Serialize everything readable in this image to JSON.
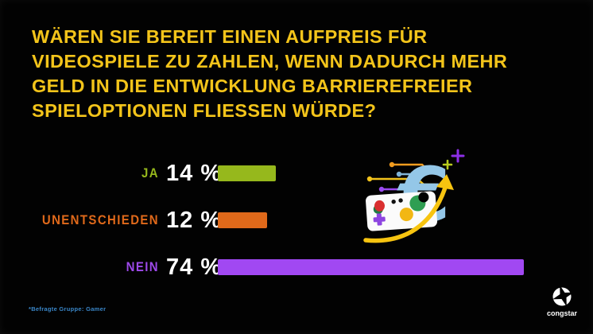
{
  "slide": {
    "title_lines": [
      "WÄREN SIE BEREIT EINEN AUFPREIS FÜR",
      "VIDEOSPIELE ZU ZAHLEN, WENN DADURCH MEHR",
      "GELD IN DIE ENTWICKLUNG BARRIEREFREIER",
      "SPIELOPTIONEN FLIESSEN WÜRDE?"
    ],
    "footnote": "*Befragte Gruppe: Gamer",
    "brand": "congstar"
  },
  "chart_data": {
    "type": "bar",
    "orientation": "horizontal",
    "title": "Wären Sie bereit einen Aufpreis für Videospiele zu zahlen, wenn dadurch mehr Geld in die Entwicklung barrierefreier Spieloptionen fließen würde?",
    "categories": [
      "JA",
      "UNENTSCHIEDEN",
      "NEIN"
    ],
    "values": [
      14,
      12,
      74
    ],
    "value_labels": [
      "14 %",
      "12 %",
      "74 %"
    ],
    "unit": "%",
    "xlim": [
      0,
      100
    ],
    "grid": false,
    "legend": "none",
    "bar_colors": [
      "#96b81c",
      "#e0691a",
      "#a148f2"
    ],
    "category_colors": [
      "#96b81c",
      "#e0691a",
      "#9d49ea"
    ]
  },
  "colors": {
    "background": "#020202",
    "title_text": "#f3c41a",
    "value_text": "#ffffff",
    "footnote_text": "#3a86c8",
    "euro_blue": "#94c7e8",
    "arrow_yellow": "#f7c410"
  },
  "icons": [
    "euro-sign-icon",
    "game-controller-icon",
    "growth-arrow-icon",
    "circuit-lines-icon",
    "sparkle-plus-icon",
    "congstar-star-logo"
  ]
}
